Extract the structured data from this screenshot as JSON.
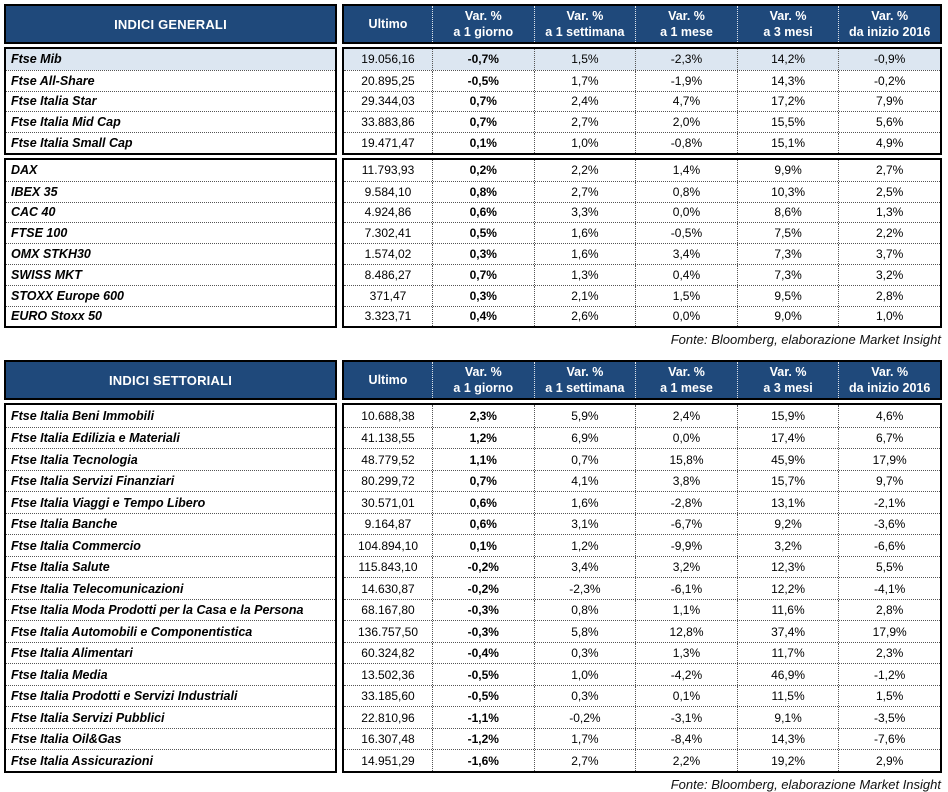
{
  "colors": {
    "header_bg": "#1F497B",
    "header_text": "#FFFFFF",
    "highlight_row_bg": "#DCE6F1",
    "dotted_border": "#555555"
  },
  "tables": [
    {
      "title": "INDICI GENERALI",
      "source": "Fonte: Bloomberg, elaborazione Market Insight",
      "columns": [
        {
          "label": "Ultimo"
        },
        {
          "label": "Var. %",
          "sub": "a 1 giorno"
        },
        {
          "label": "Var. %",
          "sub": "a 1 settimana"
        },
        {
          "label": "Var. %",
          "sub": "a 1 mese"
        },
        {
          "label": "Var. %",
          "sub": "a 3 mesi"
        },
        {
          "label": "Var. %",
          "sub": "da inizio 2016"
        }
      ],
      "groups": [
        {
          "rows": [
            {
              "name": "Ftse Mib",
              "highlight": true,
              "values": [
                "19.056,16",
                "-0,7%",
                "1,5%",
                "-2,3%",
                "14,2%",
                "-0,9%"
              ]
            },
            {
              "name": "Ftse All-Share",
              "values": [
                "20.895,25",
                "-0,5%",
                "1,7%",
                "-1,9%",
                "14,3%",
                "-0,2%"
              ]
            },
            {
              "name": "Ftse Italia Star",
              "values": [
                "29.344,03",
                "0,7%",
                "2,4%",
                "4,7%",
                "17,2%",
                "7,9%"
              ]
            },
            {
              "name": "Ftse Italia Mid Cap",
              "values": [
                "33.883,86",
                "0,7%",
                "2,7%",
                "2,0%",
                "15,5%",
                "5,6%"
              ]
            },
            {
              "name": "Ftse Italia Small Cap",
              "values": [
                "19.471,47",
                "0,1%",
                "1,0%",
                "-0,8%",
                "15,1%",
                "4,9%"
              ]
            }
          ]
        },
        {
          "rows": [
            {
              "name": "DAX",
              "values": [
                "11.793,93",
                "0,2%",
                "2,2%",
                "1,4%",
                "9,9%",
                "2,7%"
              ]
            },
            {
              "name": "IBEX 35",
              "values": [
                "9.584,10",
                "0,8%",
                "2,7%",
                "0,8%",
                "10,3%",
                "2,5%"
              ]
            },
            {
              "name": "CAC 40",
              "values": [
                "4.924,86",
                "0,6%",
                "3,3%",
                "0,0%",
                "8,6%",
                "1,3%"
              ]
            },
            {
              "name": "FTSE 100",
              "values": [
                "7.302,41",
                "0,5%",
                "1,6%",
                "-0,5%",
                "7,5%",
                "2,2%"
              ]
            },
            {
              "name": "OMX STKH30",
              "values": [
                "1.574,02",
                "0,3%",
                "1,6%",
                "3,4%",
                "7,3%",
                "3,7%"
              ]
            },
            {
              "name": "SWISS MKT",
              "values": [
                "8.486,27",
                "0,7%",
                "1,3%",
                "0,4%",
                "7,3%",
                "3,2%"
              ]
            },
            {
              "name": "STOXX Europe 600",
              "values": [
                "371,47",
                "0,3%",
                "2,1%",
                "1,5%",
                "9,5%",
                "2,8%"
              ]
            },
            {
              "name": "EURO Stoxx 50",
              "values": [
                "3.323,71",
                "0,4%",
                "2,6%",
                "0,0%",
                "9,0%",
                "1,0%"
              ]
            }
          ]
        }
      ]
    },
    {
      "title": "INDICI SETTORIALI",
      "source": "Fonte: Bloomberg, elaborazione Market Insight",
      "columns": [
        {
          "label": "Ultimo"
        },
        {
          "label": "Var. %",
          "sub": "a 1 giorno"
        },
        {
          "label": "Var. %",
          "sub": "a 1 settimana"
        },
        {
          "label": "Var. %",
          "sub": "a 1 mese"
        },
        {
          "label": "Var. %",
          "sub": "a 3 mesi"
        },
        {
          "label": "Var. %",
          "sub": "da inizio 2016"
        }
      ],
      "groups": [
        {
          "rows": [
            {
              "name": "Ftse Italia Beni Immobili",
              "values": [
                "10.688,38",
                "2,3%",
                "5,9%",
                "2,4%",
                "15,9%",
                "4,6%"
              ]
            },
            {
              "name": "Ftse Italia Edilizia e Materiali",
              "values": [
                "41.138,55",
                "1,2%",
                "6,9%",
                "0,0%",
                "17,4%",
                "6,7%"
              ]
            },
            {
              "name": "Ftse Italia Tecnologia",
              "values": [
                "48.779,52",
                "1,1%",
                "0,7%",
                "15,8%",
                "45,9%",
                "17,9%"
              ]
            },
            {
              "name": "Ftse Italia Servizi Finanziari",
              "values": [
                "80.299,72",
                "0,7%",
                "4,1%",
                "3,8%",
                "15,7%",
                "9,7%"
              ]
            },
            {
              "name": "Ftse Italia Viaggi e Tempo Libero",
              "values": [
                "30.571,01",
                "0,6%",
                "1,6%",
                "-2,8%",
                "13,1%",
                "-2,1%"
              ]
            },
            {
              "name": "Ftse Italia Banche",
              "values": [
                "9.164,87",
                "0,6%",
                "3,1%",
                "-6,7%",
                "9,2%",
                "-3,6%"
              ]
            },
            {
              "name": "Ftse Italia Commercio",
              "values": [
                "104.894,10",
                "0,1%",
                "1,2%",
                "-9,9%",
                "3,2%",
                "-6,6%"
              ]
            },
            {
              "name": "Ftse Italia Salute",
              "values": [
                "115.843,10",
                "-0,2%",
                "3,4%",
                "3,2%",
                "12,3%",
                "5,5%"
              ]
            },
            {
              "name": "Ftse Italia Telecomunicazioni",
              "values": [
                "14.630,87",
                "-0,2%",
                "-2,3%",
                "-6,1%",
                "12,2%",
                "-4,1%"
              ]
            },
            {
              "name": "Ftse Italia Moda Prodotti per la Casa e la Persona",
              "values": [
                "68.167,80",
                "-0,3%",
                "0,8%",
                "1,1%",
                "11,6%",
                "2,8%"
              ]
            },
            {
              "name": "Ftse Italia Automobili e Componentistica",
              "values": [
                "136.757,50",
                "-0,3%",
                "5,8%",
                "12,8%",
                "37,4%",
                "17,9%"
              ]
            },
            {
              "name": "Ftse Italia Alimentari",
              "values": [
                "60.324,82",
                "-0,4%",
                "0,3%",
                "1,3%",
                "11,7%",
                "2,3%"
              ]
            },
            {
              "name": "Ftse Italia Media",
              "values": [
                "13.502,36",
                "-0,5%",
                "1,0%",
                "-4,2%",
                "46,9%",
                "-1,2%"
              ]
            },
            {
              "name": "Ftse Italia Prodotti e Servizi Industriali",
              "values": [
                "33.185,60",
                "-0,5%",
                "0,3%",
                "0,1%",
                "11,5%",
                "1,5%"
              ]
            },
            {
              "name": "Ftse Italia Servizi Pubblici",
              "values": [
                "22.810,96",
                "-1,1%",
                "-0,2%",
                "-3,1%",
                "9,1%",
                "-3,5%"
              ]
            },
            {
              "name": "Ftse Italia Oil&Gas",
              "values": [
                "16.307,48",
                "-1,2%",
                "1,7%",
                "-8,4%",
                "14,3%",
                "-7,6%"
              ]
            },
            {
              "name": "Ftse Italia Assicurazioni",
              "values": [
                "14.951,29",
                "-1,6%",
                "2,7%",
                "2,2%",
                "19,2%",
                "2,9%"
              ]
            }
          ]
        }
      ]
    }
  ]
}
